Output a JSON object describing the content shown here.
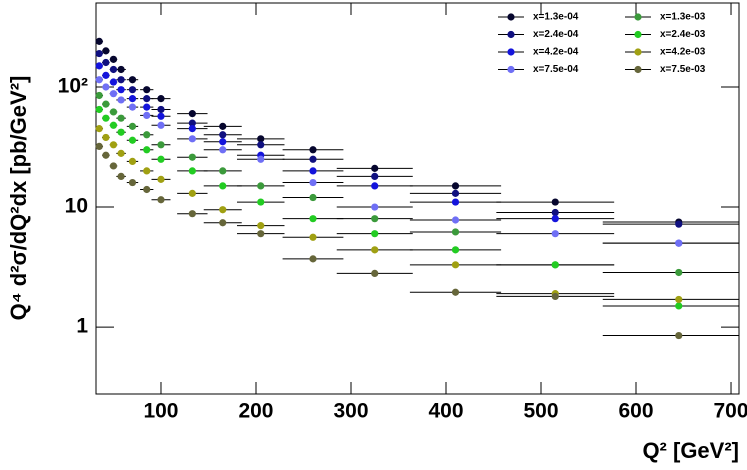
{
  "chart_data": {
    "type": "scatter",
    "x_label": "Q² [GeV²]",
    "y_label": "Q⁴ d²σ/dQ²dx [pb/GeV²]",
    "x": [
      35,
      42,
      50,
      58,
      70,
      85,
      100,
      133,
      165,
      205,
      260,
      325,
      410,
      515,
      645
    ],
    "xerr": [
      4,
      4,
      4,
      5,
      6,
      7,
      10,
      16,
      20,
      25,
      32,
      40,
      48,
      62,
      80
    ],
    "series": [
      {
        "name": "x=1.3e-04",
        "color": "#06062e",
        "values": [
          240,
          200,
          170,
          140,
          115,
          95,
          80,
          60,
          47,
          37,
          30,
          21,
          15,
          11,
          7.5
        ]
      },
      {
        "name": "x=2.4e-04",
        "color": "#101080",
        "values": [
          190,
          160,
          140,
          115,
          95,
          80,
          65,
          50,
          40,
          33,
          25,
          18,
          13,
          9,
          7.2
        ]
      },
      {
        "name": "x=4.2e-04",
        "color": "#1414dc",
        "values": [
          150,
          125,
          110,
          95,
          80,
          68,
          57,
          45,
          35,
          27,
          20,
          15,
          11,
          8,
          5
        ]
      },
      {
        "name": "x=7.5e-04",
        "color": "#6f6ff5",
        "values": [
          115,
          100,
          88,
          78,
          68,
          58,
          48,
          37,
          30,
          25,
          16,
          10,
          7.8,
          6,
          5
        ]
      },
      {
        "name": "x=1.3e-03",
        "color": "#3b9a3b",
        "values": [
          85,
          72,
          62,
          55,
          47,
          40,
          33,
          26,
          20,
          15,
          12,
          8,
          6.2,
          3.3,
          2.85
        ]
      },
      {
        "name": "x=2.4e-03",
        "color": "#22cc22",
        "values": [
          65,
          55,
          48,
          42,
          36,
          30,
          25,
          20,
          15,
          11,
          8,
          6,
          4.4,
          3.3,
          1.5
        ]
      },
      {
        "name": "x=4.2e-03",
        "color": "#a0a012",
        "values": [
          45,
          38,
          33,
          28,
          24,
          20,
          17,
          13,
          9.5,
          7,
          5.6,
          4.4,
          3.3,
          1.9,
          1.7
        ]
      },
      {
        "name": "x=7.5e-03",
        "color": "#66663a",
        "values": [
          32,
          27,
          22,
          18,
          16,
          14,
          11.5,
          8.8,
          7.4,
          6,
          3.7,
          2.8,
          1.95,
          1.8,
          0.85
        ]
      }
    ],
    "xlim": [
      31.6,
      708.4
    ],
    "xticks": [
      100,
      200,
      300,
      400,
      500,
      600,
      700
    ],
    "ylim": [
      0.277,
      501
    ],
    "yticks": [
      1,
      10,
      {
        "value": 100,
        "label": "10²"
      }
    ],
    "log_y": true,
    "legend": "top-right"
  }
}
